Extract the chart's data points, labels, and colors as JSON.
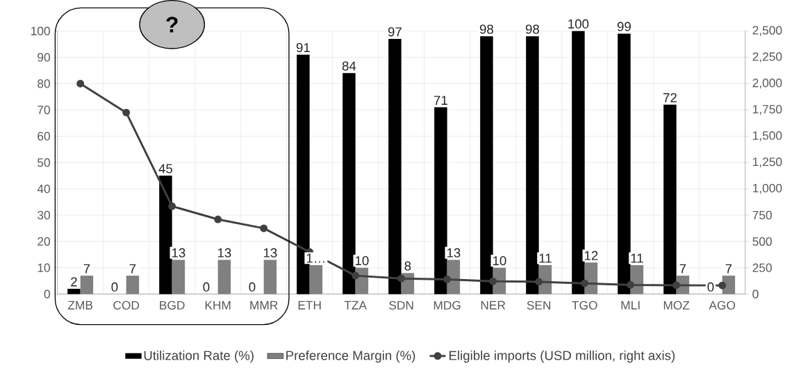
{
  "chart_data": {
    "type": "bar",
    "categories": [
      "ZMB",
      "COD",
      "BGD",
      "KHM",
      "MMR",
      "ETH",
      "TZA",
      "SDN",
      "MDG",
      "NER",
      "SEN",
      "TGO",
      "MLI",
      "MOZ",
      "AGO"
    ],
    "series": [
      {
        "name": "Utilization Rate (%)",
        "color": "#000000",
        "values": [
          2,
          0,
          45,
          0,
          0,
          91,
          84,
          97,
          71,
          98,
          98,
          100,
          99,
          72,
          0
        ],
        "value_labels": [
          "2",
          "0",
          "45",
          "0",
          "0",
          "91",
          "84",
          "97",
          "71",
          "98",
          "98",
          "100",
          "99",
          "72",
          "0"
        ]
      },
      {
        "name": "Preference Margin (%)",
        "color": "#808080",
        "values": [
          7,
          7,
          13,
          13,
          13,
          11,
          10,
          8,
          13,
          10,
          11,
          12,
          11,
          7,
          7
        ],
        "value_labels": [
          "7",
          "7",
          "13",
          "13",
          "13",
          "1…",
          "10",
          "8",
          "13",
          "10",
          "11",
          "12",
          "11",
          "7",
          "7"
        ]
      },
      {
        "name": "Eligible imports (USD million, right axis)",
        "type": "line",
        "axis": "y2",
        "marker": "circle",
        "color": "#404040",
        "values": [
          2000,
          1725,
          835,
          710,
          625,
          400,
          175,
          148,
          140,
          122,
          117,
          102,
          87,
          84,
          82
        ]
      }
    ],
    "ylim": [
      0,
      100
    ],
    "yticks": [
      0,
      10,
      20,
      30,
      40,
      50,
      60,
      70,
      80,
      90,
      100
    ],
    "y2lim": [
      0,
      2500
    ],
    "y2ticks": [
      0,
      {
        "value": 250,
        "label": "250"
      },
      {
        "value": 500,
        "label": "500"
      },
      {
        "value": 750,
        "label": "750"
      },
      {
        "value": 1000,
        "label": "1,000"
      },
      {
        "value": 1250,
        "label": "1,250"
      },
      {
        "value": 1500,
        "label": "1,500"
      },
      {
        "value": 1750,
        "label": "1,750"
      },
      {
        "value": 2000,
        "label": "2,000"
      },
      {
        "value": 2250,
        "label": "2,250"
      },
      {
        "value": 2500,
        "label": "2,500"
      }
    ],
    "grid": true,
    "legend": "bottom",
    "annotations": [
      "?"
    ]
  }
}
